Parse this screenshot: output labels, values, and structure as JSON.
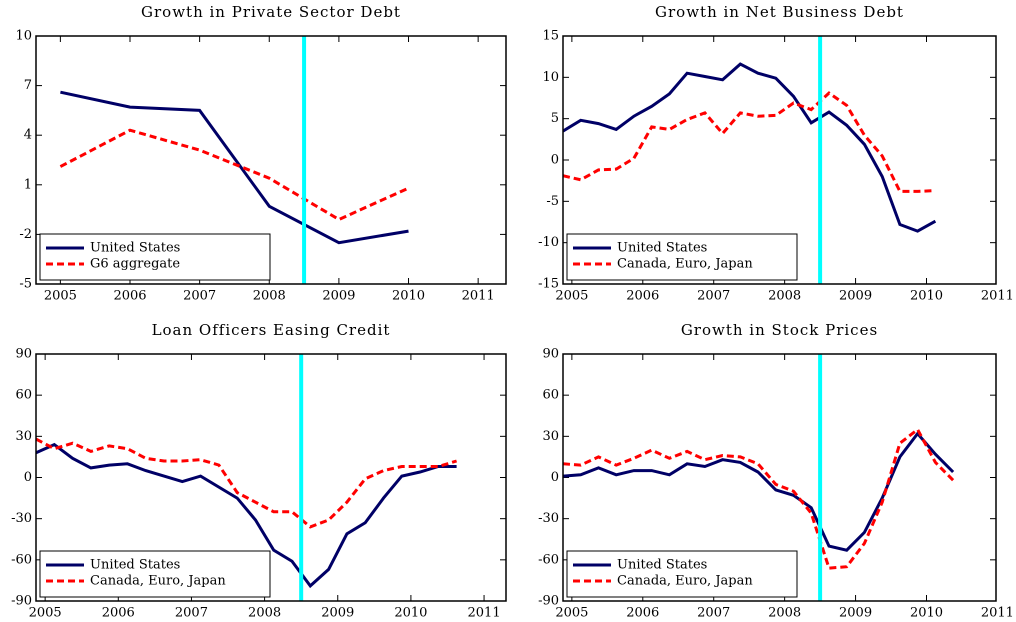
{
  "chart_data": [
    {
      "type": "line",
      "title": "Growth in Private Sector Debt",
      "x": [
        2005,
        2006,
        2007,
        2008,
        2009,
        2010
      ],
      "series": [
        {
          "name": "United States",
          "color": "#000066",
          "linestyle": "solid",
          "values": [
            6.6,
            5.7,
            5.5,
            -0.3,
            -2.5,
            -1.8
          ]
        },
        {
          "name": "G6 aggregate",
          "color": "#ff0000",
          "linestyle": "dashed",
          "values": [
            2.1,
            4.3,
            3.1,
            1.4,
            -1.1,
            0.8
          ]
        }
      ],
      "xlim": [
        2004.65,
        2011.4
      ],
      "ylim": [
        -5,
        10
      ],
      "xticks": [
        2005,
        2006,
        2007,
        2008,
        2009,
        2010,
        2011
      ],
      "yticks": [
        -5,
        -2,
        1,
        4,
        7,
        10
      ],
      "vline": 2008.5,
      "vline_color": "#00ffff",
      "legend": "lower left"
    },
    {
      "type": "line",
      "title": "Growth in Net Business Debt",
      "x": [
        2004.875,
        2005.125,
        2005.375,
        2005.625,
        2005.875,
        2006.125,
        2006.375,
        2006.625,
        2006.875,
        2007.125,
        2007.375,
        2007.625,
        2007.875,
        2008.125,
        2008.375,
        2008.625,
        2008.875,
        2009.125,
        2009.375,
        2009.625,
        2009.875,
        2010.125
      ],
      "series": [
        {
          "name": "United States",
          "color": "#000066",
          "linestyle": "solid",
          "values": [
            3.5,
            4.8,
            4.4,
            3.7,
            5.3,
            6.5,
            8.0,
            10.5,
            10.1,
            9.7,
            11.6,
            10.5,
            9.9,
            7.7,
            4.5,
            5.8,
            4.2,
            1.9,
            -2.0,
            -7.8,
            -8.6,
            -7.4
          ]
        },
        {
          "name": "Canada, Euro, Japan",
          "color": "#ff0000",
          "linestyle": "dashed",
          "values": [
            -1.9,
            -2.4,
            -1.2,
            -1.1,
            0.2,
            4.0,
            3.7,
            4.9,
            5.7,
            3.2,
            5.7,
            5.3,
            5.4,
            6.9,
            6.1,
            8.1,
            6.6,
            3.0,
            0.5,
            -3.8,
            -3.8,
            -3.7
          ]
        }
      ],
      "xlim": [
        2004.875,
        2010.98
      ],
      "ylim": [
        -15,
        15
      ],
      "xticks": [
        2005,
        2006,
        2007,
        2008,
        2009,
        2010,
        2011
      ],
      "yticks": [
        -15,
        -10,
        -5,
        0,
        5,
        10,
        15
      ],
      "vline": 2008.5,
      "vline_color": "#00ffff",
      "legend": "lower left"
    },
    {
      "type": "line",
      "title": "Loan Officers Easing Credit",
      "x": [
        2004.875,
        2005.125,
        2005.375,
        2005.625,
        2005.875,
        2006.125,
        2006.375,
        2006.625,
        2006.875,
        2007.125,
        2007.375,
        2007.625,
        2007.875,
        2008.125,
        2008.375,
        2008.625,
        2008.875,
        2009.125,
        2009.375,
        2009.625,
        2009.875,
        2010.125,
        2010.375,
        2010.625
      ],
      "series": [
        {
          "name": "United States",
          "color": "#000066",
          "linestyle": "solid",
          "values": [
            18,
            24,
            14,
            7,
            9,
            10,
            5,
            1,
            -3,
            1,
            -7,
            -15,
            -31,
            -53,
            -61,
            -79,
            -67,
            -41,
            -33,
            -15,
            1,
            4,
            8,
            8
          ]
        },
        {
          "name": "Canada, Euro, Japan",
          "color": "#ff0000",
          "linestyle": "dashed",
          "values": [
            28,
            21,
            25,
            19,
            23,
            21,
            14,
            12,
            12,
            13,
            9,
            -11,
            -18,
            -25,
            -25,
            -36,
            -31,
            -18,
            -1,
            5,
            8,
            8,
            8,
            12
          ]
        }
      ],
      "xlim": [
        2004.875,
        2011.3
      ],
      "ylim": [
        -90,
        90
      ],
      "xticks": [
        2005,
        2006,
        2007,
        2008,
        2009,
        2010,
        2011
      ],
      "yticks": [
        -90,
        -60,
        -30,
        0,
        30,
        60,
        90
      ],
      "vline": 2008.5,
      "vline_color": "#00ffff",
      "legend": "lower left"
    },
    {
      "type": "line",
      "title": "Growth in Stock Prices",
      "x": [
        2004.875,
        2005.125,
        2005.375,
        2005.625,
        2005.875,
        2006.125,
        2006.375,
        2006.625,
        2006.875,
        2007.125,
        2007.375,
        2007.625,
        2007.875,
        2008.125,
        2008.375,
        2008.625,
        2008.875,
        2009.125,
        2009.375,
        2009.625,
        2009.875,
        2010.125,
        2010.375
      ],
      "series": [
        {
          "name": "United States",
          "color": "#000066",
          "linestyle": "solid",
          "values": [
            1,
            2,
            7,
            2,
            5,
            5,
            2,
            10,
            8,
            13,
            11,
            4,
            -9,
            -13,
            -22,
            -50,
            -53,
            -40,
            -15,
            15,
            32,
            17,
            4
          ]
        },
        {
          "name": "Canada, Euro, Japan",
          "color": "#ff0000",
          "linestyle": "dashed",
          "values": [
            10,
            9,
            15,
            9,
            14,
            20,
            14,
            19,
            13,
            16,
            15,
            10,
            -5,
            -10,
            -26,
            -66,
            -65,
            -48,
            -18,
            25,
            35,
            11,
            -2
          ]
        }
      ],
      "xlim": [
        2004.875,
        2010.98
      ],
      "ylim": [
        -90,
        90
      ],
      "xticks": [
        2005,
        2006,
        2007,
        2008,
        2009,
        2010,
        2011
      ],
      "yticks": [
        -90,
        -60,
        -30,
        0,
        30,
        60,
        90
      ],
      "vline": 2008.5,
      "vline_color": "#00ffff",
      "legend": "lower left"
    }
  ]
}
